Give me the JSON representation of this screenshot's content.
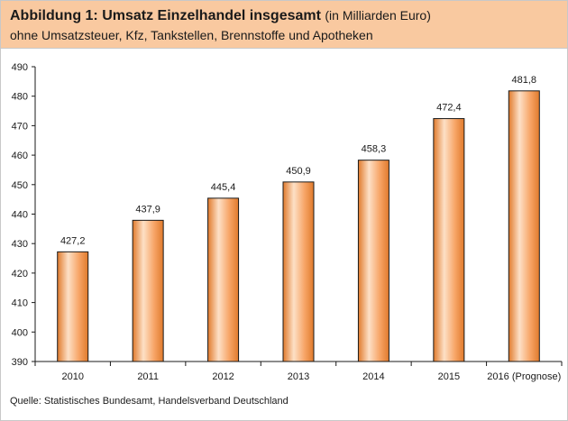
{
  "header": {
    "title_bold": "Abbildung 1: Umsatz Einzelhandel insgesamt",
    "title_unit": "(in Milliarden Euro)",
    "subtitle": "ohne Umsatzsteuer, Kfz, Tankstellen, Brennstoffe und Apotheken"
  },
  "footer": {
    "source": "Quelle: Statistisches Bundesamt, Handelsverband Deutschland"
  },
  "colors": {
    "header_bg": "#f9c9a0",
    "bar_light": "#fde0c6",
    "bar_mid": "#f7a567",
    "bar_dark": "#e07a2c",
    "bar_outline": "#1a1a1a"
  },
  "chart_data": {
    "type": "bar",
    "categories": [
      "2010",
      "2011",
      "2012",
      "2013",
      "2014",
      "2015",
      "2016 (Prognose)"
    ],
    "values": [
      427.2,
      437.9,
      445.4,
      450.9,
      458.3,
      472.4,
      481.8
    ],
    "value_labels": [
      "427,2",
      "437,9",
      "445,4",
      "450,9",
      "458,3",
      "472,4",
      "481,8"
    ],
    "ylim": [
      390,
      490
    ],
    "yticks": [
      390,
      400,
      410,
      420,
      430,
      440,
      450,
      460,
      470,
      480,
      490
    ],
    "grid": false,
    "legend": "none"
  }
}
